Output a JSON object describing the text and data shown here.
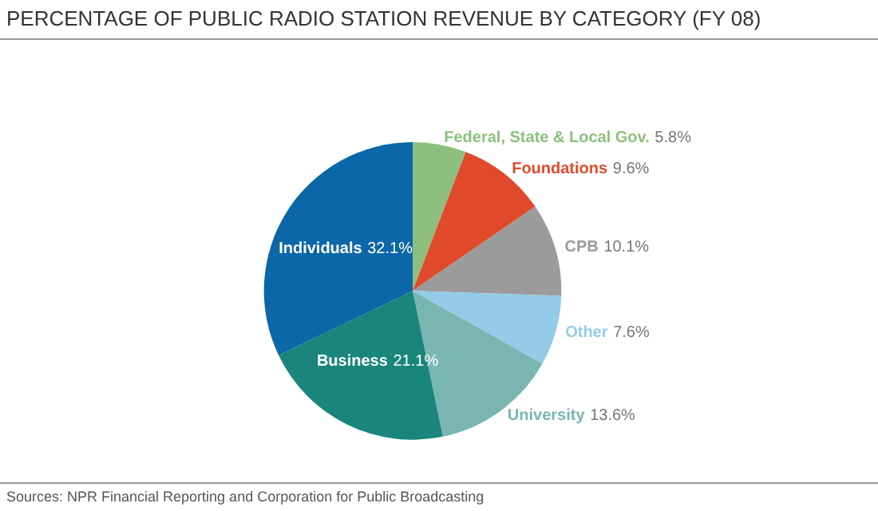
{
  "chart_data": {
    "type": "pie",
    "title": "PERCENTAGE OF PUBLIC RADIO STATION REVENUE BY CATEGORY (FY 08)",
    "categories": [
      "Federal, State & Local Gov.",
      "Foundations",
      "CPB",
      "Other",
      "University",
      "Business",
      "Individuals"
    ],
    "values": [
      5.8,
      9.6,
      10.1,
      7.6,
      13.6,
      21.1,
      32.1
    ],
    "value_labels": [
      "5.8%",
      "9.6%",
      "10.1%",
      "7.6%",
      "13.6%",
      "21.1%",
      "32.1%"
    ],
    "colors": [
      "#8dc07f",
      "#e04a2b",
      "#9b9b9b",
      "#94cbe9",
      "#79b6b2",
      "#1a857a",
      "#0b67a8"
    ],
    "annotations": [
      "Sources: NPR Financial Reporting and Corporation for Public Broadcasting"
    ],
    "legend": false
  }
}
